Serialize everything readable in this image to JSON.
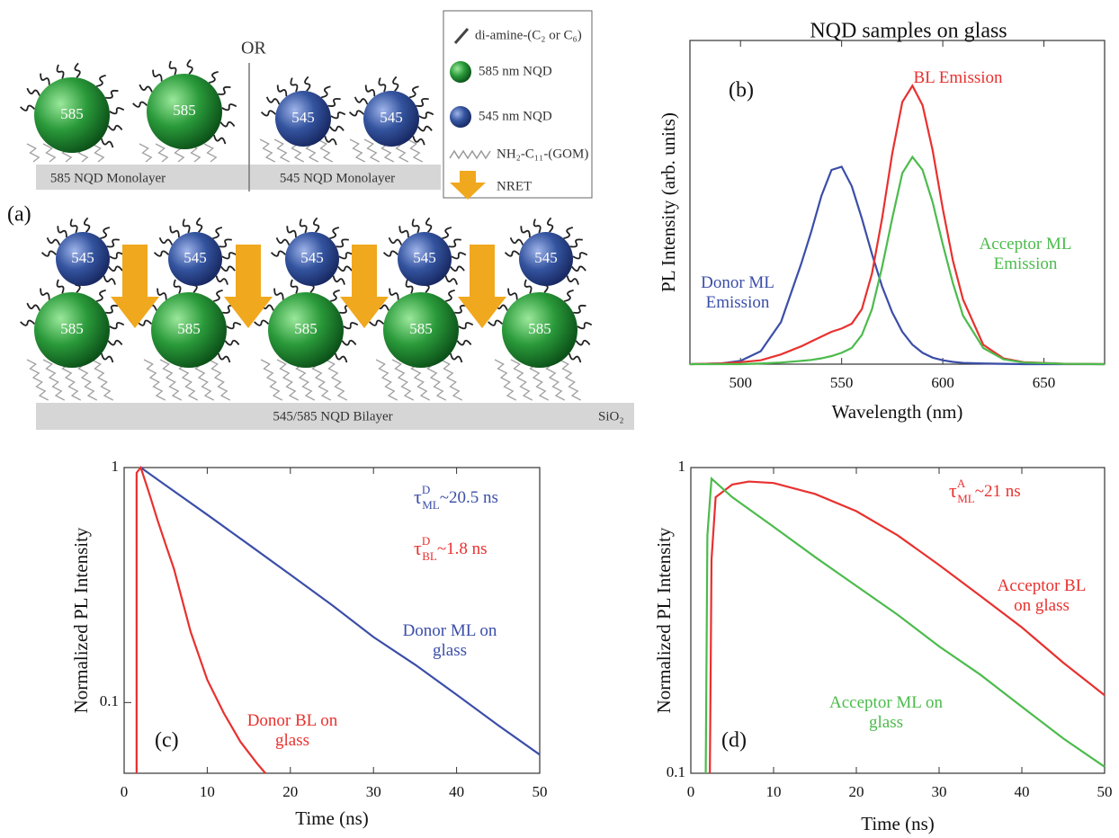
{
  "diagram": {
    "label": "(a)",
    "or": "OR",
    "acceptor": "585",
    "donor": "545",
    "monolayers": [
      "585 NQD Monolayer",
      "545 NQD Monolayer"
    ],
    "bilayer": "545/585 NQD Bilayer",
    "substrate": "SiO₂",
    "legend": [
      "di-amine-(C₂ or C₆)",
      "585 nm NQD",
      "545 nm NQD",
      "NH₂-C₁₁-(GOM)",
      "NRET"
    ]
  },
  "chart_data": [
    {
      "type": "line",
      "label": "(b)",
      "title": "NQD samples on glass",
      "xlabel": "Wavelength (nm)",
      "ylabel": "PL Intensity (arb. units)",
      "xlim": [
        475,
        680
      ],
      "xticks": [
        500,
        550,
        600,
        650
      ],
      "ylim": [
        0,
        1
      ],
      "x": [
        475,
        490,
        500,
        510,
        520,
        530,
        535,
        540,
        545,
        550,
        555,
        560,
        565,
        570,
        575,
        580,
        585,
        590,
        595,
        600,
        605,
        610,
        620,
        630,
        640,
        660,
        680
      ],
      "series": [
        {
          "name": "Donor ML Emission",
          "color": "#3b4ea8",
          "values": [
            0,
            0.002,
            0.01,
            0.04,
            0.13,
            0.31,
            0.41,
            0.52,
            0.6,
            0.61,
            0.55,
            0.45,
            0.34,
            0.24,
            0.16,
            0.1,
            0.06,
            0.035,
            0.02,
            0.012,
            0.007,
            0.004,
            0.002,
            0.001,
            0,
            0,
            0
          ]
        },
        {
          "name": "BL Emission",
          "color": "#e8312f",
          "values": [
            0,
            0.002,
            0.006,
            0.012,
            0.03,
            0.055,
            0.07,
            0.085,
            0.1,
            0.11,
            0.125,
            0.17,
            0.28,
            0.45,
            0.65,
            0.81,
            0.86,
            0.8,
            0.66,
            0.48,
            0.32,
            0.2,
            0.06,
            0.018,
            0.006,
            0.001,
            0
          ]
        },
        {
          "name": "Acceptor ML Emission",
          "color": "#4cbb4c",
          "values": [
            0,
            0,
            0,
            0.002,
            0.005,
            0.01,
            0.013,
            0.018,
            0.025,
            0.035,
            0.05,
            0.09,
            0.17,
            0.3,
            0.45,
            0.59,
            0.64,
            0.6,
            0.5,
            0.37,
            0.25,
            0.15,
            0.05,
            0.015,
            0.005,
            0.001,
            0
          ]
        }
      ]
    },
    {
      "type": "line",
      "label": "(c)",
      "xlabel": "Time (ns)",
      "ylabel": "Normalized PL Intensity",
      "log_y": true,
      "xlim": [
        0,
        50
      ],
      "xticks": [
        0,
        10,
        20,
        30,
        40,
        50
      ],
      "ylim": [
        0.05,
        1
      ],
      "yticks": [
        0.1,
        1
      ],
      "series": [
        {
          "name": "Donor ML on glass",
          "color": "#3b4ea8",
          "x": [
            2,
            5,
            10,
            15,
            20,
            25,
            30,
            35,
            40,
            45,
            50
          ],
          "values": [
            1,
            0.84,
            0.63,
            0.47,
            0.35,
            0.26,
            0.19,
            0.145,
            0.108,
            0.08,
            0.06
          ]
        },
        {
          "name": "Donor BL on glass",
          "color": "#e8312f",
          "x": [
            1.5,
            1.5,
            2,
            3,
            4,
            5,
            6,
            8,
            10,
            12,
            14,
            16,
            17
          ],
          "values": [
            0.05,
            0.95,
            1,
            0.78,
            0.6,
            0.47,
            0.37,
            0.2,
            0.125,
            0.09,
            0.068,
            0.055,
            0.05
          ]
        }
      ],
      "annotations": [
        {
          "symbol": "τ",
          "sup": "D",
          "sub": "ML",
          "text": "~20.5 ns",
          "color": "#3b4ea8"
        },
        {
          "symbol": "τ",
          "sup": "D",
          "sub": "BL",
          "text": "~1.8 ns",
          "color": "#e8312f"
        }
      ]
    },
    {
      "type": "line",
      "label": "(d)",
      "xlabel": "Time (ns)",
      "ylabel": "Normalized PL Intensity",
      "log_y": true,
      "xlim": [
        0,
        50
      ],
      "xticks": [
        0,
        10,
        20,
        30,
        40,
        50
      ],
      "ylim": [
        0.1,
        1
      ],
      "yticks": [
        0.1,
        1
      ],
      "series": [
        {
          "name": "Acceptor BL on glass",
          "color": "#e8312f",
          "x": [
            2.3,
            2.5,
            3,
            5,
            7,
            10,
            15,
            20,
            25,
            30,
            35,
            40,
            45,
            50
          ],
          "values": [
            0.1,
            0.5,
            0.8,
            0.88,
            0.9,
            0.89,
            0.82,
            0.72,
            0.6,
            0.48,
            0.38,
            0.3,
            0.23,
            0.18
          ]
        },
        {
          "name": "Acceptor ML on glass",
          "color": "#4cbb4c",
          "x": [
            1.8,
            2,
            2.5,
            5,
            10,
            15,
            20,
            25,
            30,
            35,
            40,
            45,
            50
          ],
          "values": [
            0.1,
            0.6,
            0.92,
            0.8,
            0.64,
            0.51,
            0.41,
            0.33,
            0.26,
            0.21,
            0.165,
            0.13,
            0.105
          ]
        }
      ],
      "annotations": [
        {
          "symbol": "τ",
          "sup": "A",
          "sub": "ML",
          "text": "~21 ns",
          "color": "#e8312f"
        }
      ]
    }
  ]
}
